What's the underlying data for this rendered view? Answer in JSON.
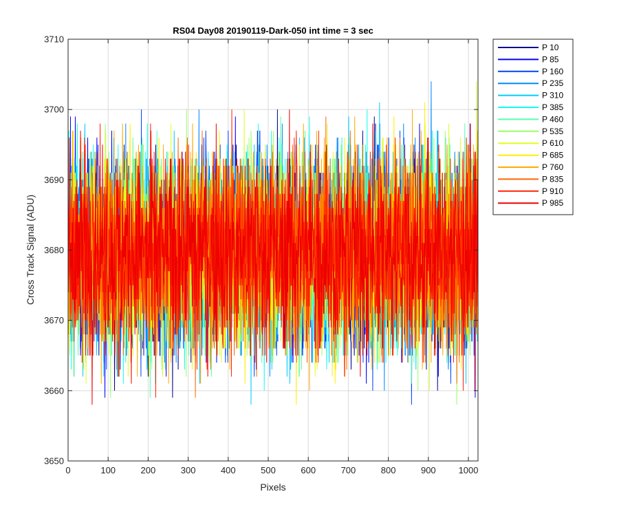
{
  "chart_data": {
    "type": "line",
    "title": "RS04 Day08 20190119-Dark-050 int time = 3 sec",
    "xlabel": "Pixels",
    "ylabel": "Cross Track Signal (ADU)",
    "xlim": [
      0,
      1024
    ],
    "ylim": [
      3650,
      3710
    ],
    "x_ticks": [
      0,
      100,
      200,
      300,
      400,
      500,
      600,
      700,
      800,
      900,
      1000
    ],
    "y_ticks": [
      3650,
      3660,
      3670,
      3680,
      3690,
      3700,
      3710
    ],
    "grid": true,
    "legend_location": "outside-top-right",
    "n_points": 1024,
    "noise_mean": 3680,
    "noise_std": 7,
    "series": [
      {
        "name": "P 10",
        "color": "#00008f"
      },
      {
        "name": "P 85",
        "color": "#0000ff"
      },
      {
        "name": "P 160",
        "color": "#0044ff"
      },
      {
        "name": "P 235",
        "color": "#0088ff"
      },
      {
        "name": "P 310",
        "color": "#00ccff"
      },
      {
        "name": "P 385",
        "color": "#11ffee"
      },
      {
        "name": "P 460",
        "color": "#55ffaa"
      },
      {
        "name": "P 535",
        "color": "#99ff66"
      },
      {
        "name": "P 610",
        "color": "#ddff22"
      },
      {
        "name": "P 685",
        "color": "#ffee00"
      },
      {
        "name": "P 760",
        "color": "#ffaa00"
      },
      {
        "name": "P 835",
        "color": "#ff6600"
      },
      {
        "name": "P 910",
        "color": "#ff2200"
      },
      {
        "name": "P 985",
        "color": "#ee0000"
      }
    ]
  }
}
